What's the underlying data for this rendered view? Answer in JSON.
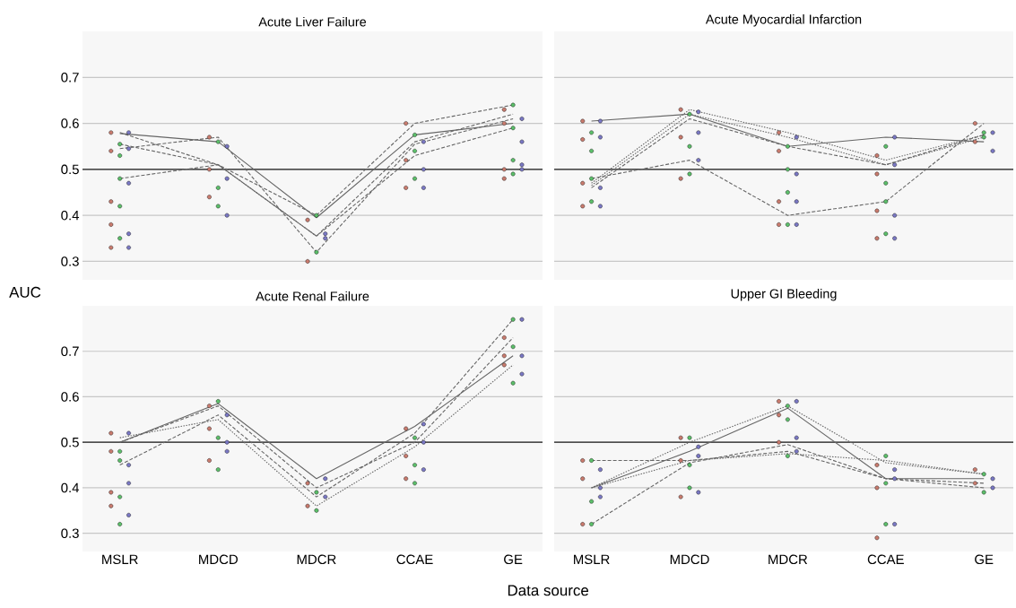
{
  "chart_data": [
    {
      "type": "line",
      "title": "Acute Liver Failure",
      "ylabel": "AUC",
      "categories": [
        "MSLR",
        "MDCD",
        "MDCR",
        "CCAE",
        "GE"
      ],
      "ylim": [
        0.26,
        0.8
      ],
      "yticks": [
        0.3,
        0.4,
        0.5,
        0.6,
        0.7
      ],
      "grid": "y",
      "tick_labels": "y",
      "ref_lines": [
        {
          "axis": "y",
          "value": 0.5,
          "color": "#222222"
        }
      ],
      "series": [
        {
          "color": "#666666",
          "line_style": "solid",
          "marker": "none",
          "values": [
            0.578,
            0.56,
            0.395,
            0.575,
            0.6
          ]
        },
        {
          "color": "#666666",
          "line_style": "dashed",
          "marker": "none",
          "values": [
            0.48,
            0.51,
            0.4,
            0.6,
            0.64
          ]
        },
        {
          "color": "#666666",
          "line_style": "dashed",
          "marker": "none",
          "values": [
            0.555,
            0.51,
            0.355,
            0.53,
            0.59
          ]
        },
        {
          "color": "#666666",
          "line_style": "dashed",
          "marker": "none",
          "values": [
            0.545,
            0.57,
            0.32,
            0.555,
            0.61
          ]
        },
        {
          "color": "#666666",
          "line_style": "dashed",
          "marker": "none",
          "values": [
            0.58,
            0.51,
            0.355,
            0.56,
            0.62
          ]
        },
        {
          "type": "scatter",
          "color": "#c97b6e",
          "marker": "circle",
          "x": [
            "MSLR",
            "MSLR",
            "MSLR",
            "MSLR",
            "MSLR",
            "MDCD",
            "MDCD",
            "MDCD",
            "MDCR",
            "MDCR",
            "CCAE",
            "CCAE",
            "CCAE",
            "GE",
            "GE",
            "GE",
            "GE"
          ],
          "values": [
            0.58,
            0.54,
            0.43,
            0.38,
            0.33,
            0.57,
            0.5,
            0.44,
            0.39,
            0.3,
            0.6,
            0.52,
            0.46,
            0.63,
            0.6,
            0.5,
            0.48
          ]
        },
        {
          "type": "scatter",
          "color": "#5cbf6a",
          "marker": "circle",
          "x": [
            "MSLR",
            "MSLR",
            "MSLR",
            "MSLR",
            "MSLR",
            "MDCD",
            "MDCD",
            "MDCD",
            "MDCR",
            "MDCR",
            "CCAE",
            "CCAE",
            "CCAE",
            "GE",
            "GE",
            "GE",
            "GE"
          ],
          "values": [
            0.555,
            0.53,
            0.48,
            0.42,
            0.35,
            0.56,
            0.46,
            0.42,
            0.4,
            0.32,
            0.575,
            0.54,
            0.48,
            0.64,
            0.59,
            0.52,
            0.49
          ]
        },
        {
          "type": "scatter",
          "color": "#7a78c4",
          "marker": "circle",
          "x": [
            "MSLR",
            "MSLR",
            "MSLR",
            "MSLR",
            "MSLR",
            "MDCD",
            "MDCD",
            "MDCD",
            "MDCR",
            "MDCR",
            "CCAE",
            "CCAE",
            "CCAE",
            "GE",
            "GE",
            "GE",
            "GE"
          ],
          "values": [
            0.58,
            0.545,
            0.47,
            0.36,
            0.33,
            0.55,
            0.48,
            0.4,
            0.36,
            0.35,
            0.56,
            0.5,
            0.46,
            0.61,
            0.56,
            0.51,
            0.5
          ]
        }
      ]
    },
    {
      "type": "line",
      "title": "Acute Myocardial Infarction",
      "categories": [
        "MSLR",
        "MDCD",
        "MDCR",
        "CCAE",
        "GE"
      ],
      "ylim": [
        0.26,
        0.8
      ],
      "yticks": [
        0.3,
        0.4,
        0.5,
        0.6,
        0.7
      ],
      "grid": "y",
      "tick_labels": false,
      "ref_lines": [
        {
          "axis": "y",
          "value": 0.5,
          "color": "#222222"
        }
      ],
      "series": [
        {
          "color": "#666666",
          "line_style": "solid",
          "marker": "none",
          "values": [
            0.605,
            0.62,
            0.55,
            0.57,
            0.56
          ]
        },
        {
          "color": "#666666",
          "line_style": "dotted",
          "marker": "none",
          "values": [
            0.47,
            0.63,
            0.58,
            0.52,
            0.575
          ]
        },
        {
          "color": "#666666",
          "line_style": "dotted",
          "marker": "none",
          "values": [
            0.465,
            0.62,
            0.57,
            0.51,
            0.57
          ]
        },
        {
          "color": "#666666",
          "line_style": "dashed",
          "marker": "none",
          "values": [
            0.46,
            0.61,
            0.55,
            0.51,
            0.575
          ]
        },
        {
          "color": "#666666",
          "line_style": "dashed",
          "marker": "none",
          "values": [
            0.48,
            0.52,
            0.4,
            0.43,
            0.6
          ]
        },
        {
          "type": "scatter",
          "color": "#c97b6e",
          "marker": "circle",
          "x": [
            "MSLR",
            "MSLR",
            "MSLR",
            "MSLR",
            "MDCD",
            "MDCD",
            "MDCD",
            "MDCR",
            "MDCR",
            "MDCR",
            "MDCR",
            "CCAE",
            "CCAE",
            "CCAE",
            "CCAE",
            "GE",
            "GE"
          ],
          "values": [
            0.605,
            0.565,
            0.47,
            0.42,
            0.63,
            0.57,
            0.48,
            0.58,
            0.54,
            0.43,
            0.38,
            0.53,
            0.49,
            0.41,
            0.35,
            0.6,
            0.56
          ]
        },
        {
          "type": "scatter",
          "color": "#5cbf6a",
          "marker": "circle",
          "x": [
            "MSLR",
            "MSLR",
            "MSLR",
            "MSLR",
            "MDCD",
            "MDCD",
            "MDCD",
            "MDCR",
            "MDCR",
            "MDCR",
            "MDCR",
            "CCAE",
            "CCAE",
            "CCAE",
            "CCAE",
            "GE",
            "GE"
          ],
          "values": [
            0.58,
            0.54,
            0.48,
            0.43,
            0.62,
            0.55,
            0.49,
            0.55,
            0.5,
            0.45,
            0.38,
            0.55,
            0.47,
            0.43,
            0.36,
            0.58,
            0.57
          ]
        },
        {
          "type": "scatter",
          "color": "#7a78c4",
          "marker": "circle",
          "x": [
            "MSLR",
            "MSLR",
            "MSLR",
            "MSLR",
            "MDCD",
            "MDCD",
            "MDCD",
            "MDCR",
            "MDCR",
            "MDCR",
            "MDCR",
            "CCAE",
            "CCAE",
            "CCAE",
            "CCAE",
            "GE",
            "GE"
          ],
          "values": [
            0.605,
            0.57,
            0.46,
            0.42,
            0.625,
            0.58,
            0.52,
            0.57,
            0.49,
            0.43,
            0.38,
            0.57,
            0.51,
            0.4,
            0.35,
            0.58,
            0.54
          ]
        }
      ]
    },
    {
      "type": "line",
      "title": "Acute Renal Failure",
      "xlabel": "Data source",
      "categories": [
        "MSLR",
        "MDCD",
        "MDCR",
        "CCAE",
        "GE"
      ],
      "ylim": [
        0.26,
        0.8
      ],
      "yticks": [
        0.3,
        0.4,
        0.5,
        0.6,
        0.7
      ],
      "grid": "y",
      "ref_lines": [
        {
          "axis": "y",
          "value": 0.5,
          "color": "#222222"
        }
      ],
      "series": [
        {
          "color": "#666666",
          "line_style": "solid",
          "marker": "none",
          "values": [
            0.5,
            0.585,
            0.42,
            0.535,
            0.69
          ]
        },
        {
          "color": "#666666",
          "line_style": "dashed",
          "marker": "none",
          "values": [
            0.45,
            0.56,
            0.38,
            0.52,
            0.77
          ]
        },
        {
          "color": "#666666",
          "line_style": "dotted",
          "marker": "none",
          "values": [
            0.51,
            0.55,
            0.36,
            0.49,
            0.67
          ]
        },
        {
          "color": "#666666",
          "line_style": "dashed",
          "marker": "none",
          "values": [
            0.5,
            0.58,
            0.4,
            0.5,
            0.73
          ]
        },
        {
          "type": "scatter",
          "color": "#c97b6e",
          "marker": "circle",
          "x": [
            "MSLR",
            "MSLR",
            "MSLR",
            "MSLR",
            "MDCD",
            "MDCD",
            "MDCD",
            "MDCR",
            "MDCR",
            "CCAE",
            "CCAE",
            "CCAE",
            "GE",
            "GE",
            "GE"
          ],
          "values": [
            0.52,
            0.48,
            0.39,
            0.36,
            0.58,
            0.53,
            0.46,
            0.41,
            0.36,
            0.53,
            0.47,
            0.42,
            0.73,
            0.69,
            0.67
          ]
        },
        {
          "type": "scatter",
          "color": "#5cbf6a",
          "marker": "circle",
          "x": [
            "MSLR",
            "MSLR",
            "MSLR",
            "MSLR",
            "MDCD",
            "MDCD",
            "MDCD",
            "MDCR",
            "MDCR",
            "CCAE",
            "CCAE",
            "CCAE",
            "GE",
            "GE",
            "GE"
          ],
          "values": [
            0.48,
            0.46,
            0.38,
            0.32,
            0.59,
            0.51,
            0.44,
            0.39,
            0.35,
            0.51,
            0.45,
            0.41,
            0.77,
            0.71,
            0.63
          ]
        },
        {
          "type": "scatter",
          "color": "#7a78c4",
          "marker": "circle",
          "x": [
            "MSLR",
            "MSLR",
            "MSLR",
            "MSLR",
            "MDCD",
            "MDCD",
            "MDCD",
            "MDCR",
            "MDCR",
            "CCAE",
            "CCAE",
            "CCAE",
            "GE",
            "GE",
            "GE"
          ],
          "values": [
            0.52,
            0.45,
            0.41,
            0.34,
            0.56,
            0.5,
            0.48,
            0.42,
            0.38,
            0.54,
            0.5,
            0.44,
            0.77,
            0.69,
            0.65
          ]
        }
      ]
    },
    {
      "type": "line",
      "title": "Upper GI Bleeding",
      "categories": [
        "MSLR",
        "MDCD",
        "MDCR",
        "CCAE",
        "GE"
      ],
      "ylim": [
        0.26,
        0.8
      ],
      "yticks": [
        0.3,
        0.4,
        0.5,
        0.6,
        0.7
      ],
      "grid": "y",
      "tick_labels": "x",
      "ref_lines": [
        {
          "axis": "y",
          "value": 0.5,
          "color": "#222222"
        }
      ],
      "series": [
        {
          "color": "#666666",
          "line_style": "solid",
          "marker": "none",
          "values": [
            0.4,
            0.48,
            0.575,
            0.42,
            0.42
          ]
        },
        {
          "color": "#666666",
          "line_style": "dashed",
          "marker": "none",
          "values": [
            0.32,
            0.455,
            0.495,
            0.42,
            0.4
          ]
        },
        {
          "color": "#666666",
          "line_style": "dotted",
          "marker": "none",
          "values": [
            0.4,
            0.5,
            0.58,
            0.455,
            0.43
          ]
        },
        {
          "color": "#666666",
          "line_style": "dashed",
          "marker": "none",
          "values": [
            0.46,
            0.46,
            0.48,
            0.42,
            0.41
          ]
        },
        {
          "color": "#666666",
          "line_style": "dotted",
          "marker": "none",
          "values": [
            0.4,
            0.46,
            0.475,
            0.46,
            0.43
          ]
        },
        {
          "type": "scatter",
          "color": "#c97b6e",
          "marker": "circle",
          "x": [
            "MSLR",
            "MSLR",
            "MSLR",
            "MDCD",
            "MDCD",
            "MDCD",
            "MDCR",
            "MDCR",
            "MDCR",
            "CCAE",
            "CCAE",
            "CCAE",
            "GE",
            "GE"
          ],
          "values": [
            0.46,
            0.42,
            0.32,
            0.51,
            0.46,
            0.38,
            0.59,
            0.56,
            0.5,
            0.45,
            0.4,
            0.29,
            0.44,
            0.41
          ]
        },
        {
          "type": "scatter",
          "color": "#5cbf6a",
          "marker": "circle",
          "x": [
            "MSLR",
            "MSLR",
            "MSLR",
            "MDCD",
            "MDCD",
            "MDCD",
            "MDCR",
            "MDCR",
            "MDCR",
            "CCAE",
            "CCAE",
            "CCAE",
            "GE",
            "GE"
          ],
          "values": [
            0.46,
            0.37,
            0.32,
            0.51,
            0.45,
            0.4,
            0.58,
            0.55,
            0.47,
            0.47,
            0.41,
            0.32,
            0.43,
            0.39
          ]
        },
        {
          "type": "scatter",
          "color": "#7a78c4",
          "marker": "circle",
          "x": [
            "MSLR",
            "MSLR",
            "MSLR",
            "MDCD",
            "MDCD",
            "MDCD",
            "MDCR",
            "MDCR",
            "MDCR",
            "CCAE",
            "CCAE",
            "CCAE",
            "GE",
            "GE"
          ],
          "values": [
            0.44,
            0.4,
            0.38,
            0.49,
            0.47,
            0.39,
            0.59,
            0.51,
            0.48,
            0.44,
            0.42,
            0.32,
            0.42,
            0.4
          ]
        }
      ]
    }
  ]
}
